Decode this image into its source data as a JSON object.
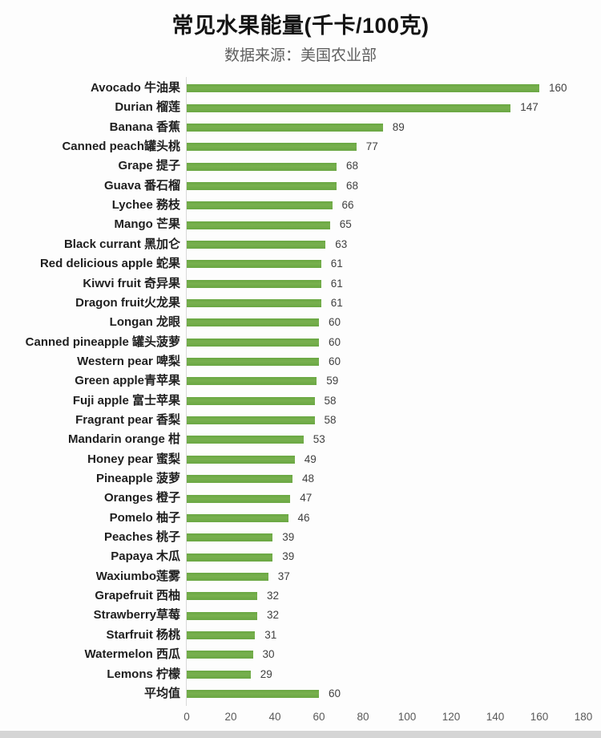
{
  "header": {
    "title": "常见水果能量(千卡/100克)",
    "subtitle": "数据来源：美国农业部"
  },
  "chart_data": {
    "type": "bar",
    "orientation": "horizontal",
    "title": "常见水果能量(千卡/100克)",
    "subtitle": "数据来源：美国农业部",
    "categories": [
      "Avocado 牛油果",
      "Durian 榴莲",
      "Banana 香蕉",
      "Canned peach罐头桃",
      "Grape 提子",
      "Guava 番石榴",
      "Lychee 務枝",
      "Mango 芒果",
      "Black currant 黑加仑",
      "Red delicious apple 蛇果",
      "Kiwvi fruit 奇异果",
      "Dragon fruit火龙果",
      "Longan 龙眼",
      "Canned pineapple 罐头菠萝",
      "Western pear 啤梨",
      "Green apple青苹果",
      "Fuji apple 富士苹果",
      "Fragrant pear 香梨",
      "Mandarin orange 柑",
      "Honey pear 蜜梨",
      "Pineapple 菠萝",
      "Oranges 橙子",
      "Pomelo 柚子",
      "Peaches 桃子",
      "Papaya 木瓜",
      "Waxiumbo莲雾",
      "Grapefruit 西柚",
      "Strawberry草莓",
      "Starfruit 杨桃",
      "Watermelon 西瓜",
      "Lemons 柠檬",
      "平均值"
    ],
    "values": [
      160,
      147,
      89,
      77,
      68,
      68,
      66,
      65,
      63,
      61,
      61,
      61,
      60,
      60,
      60,
      59,
      58,
      58,
      53,
      49,
      48,
      47,
      46,
      39,
      39,
      37,
      32,
      32,
      31,
      30,
      29,
      60
    ],
    "value_labels_shown": true,
    "xlabel": "",
    "ylabel": "",
    "xlim": [
      0,
      180
    ],
    "xticks": [
      0,
      20,
      40,
      60,
      80,
      100,
      120,
      140,
      160,
      180
    ],
    "grid": false,
    "legend": "none",
    "bar_color": "#70ad47",
    "label_color": "#1f1f1f",
    "value_color": "#404040",
    "tick_color": "#595959",
    "axis_line_color": "#d9d9d9"
  }
}
